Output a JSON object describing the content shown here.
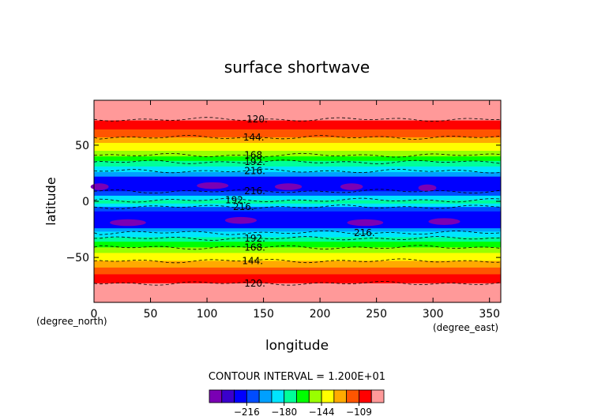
{
  "chart_data": {
    "type": "heatmap",
    "title": "surface shortwave",
    "xlabel": "longitude",
    "ylabel": "latitude",
    "x_unit": "(degree_east)",
    "y_unit": "(degree_north)",
    "xlim": [
      0,
      360
    ],
    "ylim": [
      -90,
      90
    ],
    "x_ticks": [
      0,
      50,
      100,
      150,
      200,
      250,
      300,
      350
    ],
    "x_tick_labels": [
      "0",
      "50",
      "100",
      "150",
      "200",
      "250",
      "300",
      "350"
    ],
    "y_ticks": [
      50,
      0,
      -50
    ],
    "y_tick_labels": [
      "50",
      "0",
      "−50"
    ],
    "contour_interval_text": "CONTOUR INTERVAL = 1.200E+01",
    "colorbar": {
      "colors": [
        "#7a00b4",
        "#3a00cc",
        "#0000ff",
        "#004cff",
        "#00a0ff",
        "#00e5ff",
        "#00ff99",
        "#00ff00",
        "#99ff00",
        "#ffff00",
        "#ffaa00",
        "#ff5500",
        "#ff0000",
        "#ff9999"
      ],
      "tick_labels": [
        "−216",
        "−180",
        "−144",
        "−109"
      ],
      "tick_positions": [
        2,
        5,
        8,
        11
      ]
    },
    "bands": [
      {
        "lat_from": 90,
        "lat_to": 72,
        "color": "#ff9999"
      },
      {
        "lat_from": 72,
        "lat_to": 64,
        "color": "#ff0000"
      },
      {
        "lat_from": 64,
        "lat_to": 57,
        "color": "#ff5500"
      },
      {
        "lat_from": 57,
        "lat_to": 52,
        "color": "#ffaa00"
      },
      {
        "lat_from": 52,
        "lat_to": 45,
        "color": "#ffff00"
      },
      {
        "lat_from": 45,
        "lat_to": 40,
        "color": "#99ff00"
      },
      {
        "lat_from": 40,
        "lat_to": 36,
        "color": "#00ff00"
      },
      {
        "lat_from": 36,
        "lat_to": 31,
        "color": "#00ff99"
      },
      {
        "lat_from": 31,
        "lat_to": 26,
        "color": "#00e5ff"
      },
      {
        "lat_from": 26,
        "lat_to": 22,
        "color": "#00a0ff"
      },
      {
        "lat_from": 22,
        "lat_to": 9,
        "color": "#0000ff"
      },
      {
        "lat_from": 9,
        "lat_to": 5,
        "color": "#004cff"
      },
      {
        "lat_from": 5,
        "lat_to": 1,
        "color": "#00e5ff"
      },
      {
        "lat_from": 1,
        "lat_to": -2,
        "color": "#00ff99"
      },
      {
        "lat_from": -2,
        "lat_to": -5,
        "color": "#00e5ff"
      },
      {
        "lat_from": -5,
        "lat_to": -9,
        "color": "#004cff"
      },
      {
        "lat_from": -9,
        "lat_to": -24,
        "color": "#0000ff"
      },
      {
        "lat_from": -24,
        "lat_to": -27,
        "color": "#00a0ff"
      },
      {
        "lat_from": -27,
        "lat_to": -32,
        "color": "#00e5ff"
      },
      {
        "lat_from": -32,
        "lat_to": -36,
        "color": "#00ff99"
      },
      {
        "lat_from": -36,
        "lat_to": -41,
        "color": "#00ff00"
      },
      {
        "lat_from": -41,
        "lat_to": -46,
        "color": "#99ff00"
      },
      {
        "lat_from": -46,
        "lat_to": -53,
        "color": "#ffff00"
      },
      {
        "lat_from": -53,
        "lat_to": -59,
        "color": "#ffaa00"
      },
      {
        "lat_from": -59,
        "lat_to": -65,
        "color": "#ff5500"
      },
      {
        "lat_from": -65,
        "lat_to": -73,
        "color": "#ff0000"
      },
      {
        "lat_from": -73,
        "lat_to": -90,
        "color": "#ff9999"
      }
    ],
    "patches": [
      {
        "lon": 5,
        "lat": 13,
        "dlon": 8,
        "dlat": 3
      },
      {
        "lon": 105,
        "lat": 14,
        "dlon": 14,
        "dlat": 3
      },
      {
        "lon": 172,
        "lat": 13,
        "dlon": 12,
        "dlat": 3
      },
      {
        "lon": 228,
        "lat": 13,
        "dlon": 10,
        "dlat": 3
      },
      {
        "lon": 295,
        "lat": 12,
        "dlon": 8,
        "dlat": 3
      },
      {
        "lon": 30,
        "lat": -19,
        "dlon": 16,
        "dlat": 3
      },
      {
        "lon": 130,
        "lat": -17,
        "dlon": 14,
        "dlat": 3
      },
      {
        "lon": 240,
        "lat": -19,
        "dlon": 16,
        "dlat": 3
      },
      {
        "lon": 310,
        "lat": -18,
        "dlon": 14,
        "dlat": 3
      }
    ],
    "contours": [
      {
        "level": "120.",
        "lat": 73,
        "label_lon": 135
      },
      {
        "level": "144.",
        "lat": 57,
        "label_lon": 132
      },
      {
        "level": "168.",
        "lat": 41,
        "label_lon": 133
      },
      {
        "level": "192.",
        "lat": 35,
        "label_lon": 133
      },
      {
        "level": "216.",
        "lat": 27,
        "label_lon": 133
      },
      {
        "level": "216.",
        "lat": 9,
        "label_lon": 133
      },
      {
        "level": "192.",
        "lat": 1,
        "label_lon": 116
      },
      {
        "level": "216.",
        "lat": -5,
        "label_lon": 123
      },
      {
        "level": "216.",
        "lat": -28,
        "label_lon": 230
      },
      {
        "level": "192.",
        "lat": -33,
        "label_lon": 133
      },
      {
        "level": "168.",
        "lat": -41,
        "label_lon": 133
      },
      {
        "level": "144.",
        "lat": -53,
        "label_lon": 131
      },
      {
        "level": "120.",
        "lat": -73,
        "label_lon": 133
      }
    ]
  }
}
